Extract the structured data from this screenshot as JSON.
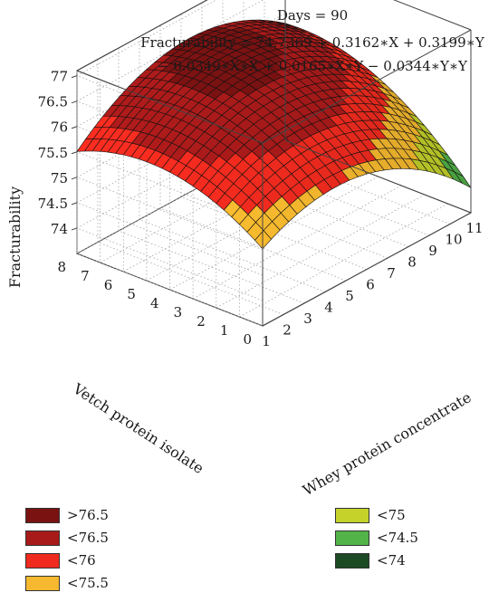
{
  "chart_data": {
    "type": "surface3d",
    "title": "Days = 90",
    "equation_line1": "Fracturability = 74.7369 + 0.3162∗X + 0.3199∗Y",
    "equation_line2": "− 0.0349∗X∗X + 0.0165∗X∗Y − 0.0344∗Y∗Y",
    "coefficients": {
      "intercept": 74.7369,
      "x": 0.3162,
      "y": 0.3199,
      "xx": -0.0349,
      "xy": 0.0165,
      "yy": -0.0344
    },
    "x_label": "Whey protein concentrate",
    "y_label": "Vetch protein isolate",
    "z_label": "Fracturability",
    "x_ticks": [
      "1",
      "2",
      "3",
      "4",
      "5",
      "6",
      "7",
      "8",
      "9",
      "10",
      "11"
    ],
    "y_ticks": [
      "0",
      "1",
      "2",
      "3",
      "4",
      "5",
      "6",
      "7",
      "8"
    ],
    "z_ticks": [
      "74",
      "74.5",
      "75",
      "75.5",
      "76",
      "76.5",
      "77"
    ],
    "x_range": [
      1,
      11
    ],
    "y_range": [
      0,
      8
    ],
    "z_range": [
      73.5,
      77.1
    ],
    "grid": true,
    "legend_position": "bottom",
    "legend": [
      {
        "label": ">76.5",
        "color": "#7a1212"
      },
      {
        "label": "<76.5",
        "color": "#a81a1a"
      },
      {
        "label": "<76",
        "color": "#ef2a1e"
      },
      {
        "label": "<75.5",
        "color": "#f5b82e"
      },
      {
        "label": "<75",
        "color": "#c4d22a"
      },
      {
        "label": "<74.5",
        "color": "#52b348"
      },
      {
        "label": "<74",
        "color": "#1c4a22"
      }
    ]
  }
}
